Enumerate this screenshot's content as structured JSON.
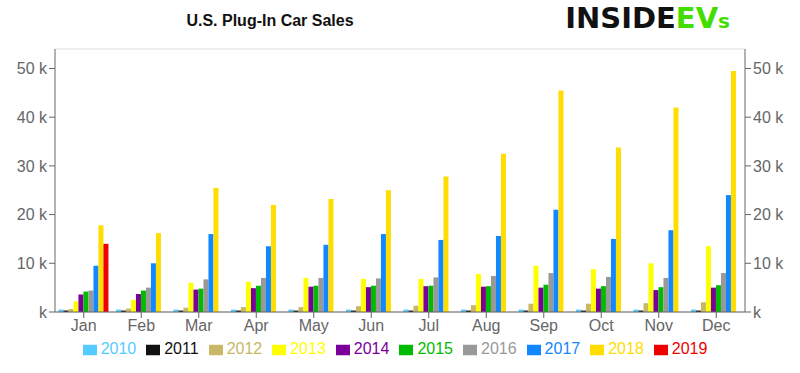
{
  "chart_data": {
    "type": "bar",
    "title": "U.S. Plug-In Car Sales",
    "categories": [
      "Jan",
      "Feb",
      "Mar",
      "Apr",
      "May",
      "Jun",
      "Jul",
      "Aug",
      "Sep",
      "Oct",
      "Nov",
      "Dec"
    ],
    "series": [
      {
        "name": "2010",
        "color": "#55CCFF",
        "values": [
          500,
          500,
          500,
          500,
          500,
          500,
          500,
          500,
          500,
          500,
          500,
          500
        ]
      },
      {
        "name": "2011",
        "color": "#111111",
        "values": [
          300,
          300,
          300,
          300,
          300,
          300,
          300,
          300,
          300,
          300,
          300,
          300
        ]
      },
      {
        "name": "2012",
        "color": "#C8B865",
        "values": [
          600,
          700,
          900,
          1000,
          1000,
          1200,
          1300,
          1400,
          1700,
          1700,
          1800,
          2000
        ]
      },
      {
        "name": "2013",
        "color": "#FFFF00",
        "values": [
          2200,
          2500,
          6000,
          6200,
          7000,
          6800,
          6800,
          7800,
          9500,
          8800,
          10000,
          13500
        ]
      },
      {
        "name": "2014",
        "color": "#7B0099",
        "values": [
          3600,
          3700,
          4600,
          4900,
          5200,
          5100,
          5300,
          5200,
          5000,
          4800,
          4500,
          5000
        ]
      },
      {
        "name": "2015",
        "color": "#00BB00",
        "values": [
          4200,
          4400,
          4800,
          5400,
          5400,
          5400,
          5400,
          5300,
          5600,
          5300,
          5100,
          5500
        ]
      },
      {
        "name": "2016",
        "color": "#999999",
        "values": [
          4400,
          5000,
          6700,
          7000,
          7000,
          6900,
          7100,
          7400,
          8000,
          7200,
          7000,
          8000
        ]
      },
      {
        "name": "2017",
        "color": "#1188FF",
        "values": [
          9500,
          10000,
          16000,
          13500,
          13800,
          16000,
          14800,
          15600,
          21000,
          15000,
          16800,
          24000
        ]
      },
      {
        "name": "2018",
        "color": "#FFDD00",
        "values": [
          17800,
          16200,
          25500,
          22000,
          23200,
          25000,
          27800,
          32500,
          45500,
          33800,
          42000,
          49500
        ]
      },
      {
        "name": "2019",
        "color": "#EE0000",
        "values": [
          14000,
          0,
          0,
          0,
          0,
          0,
          0,
          0,
          0,
          0,
          0,
          0
        ]
      }
    ],
    "ylim": [
      0,
      54000
    ],
    "yticks": [
      {
        "value": 0,
        "label": "k"
      },
      {
        "value": 10000,
        "label": "10 k"
      },
      {
        "value": 20000,
        "label": "20 k"
      },
      {
        "value": 30000,
        "label": "30 k"
      },
      {
        "value": 40000,
        "label": "40 k"
      },
      {
        "value": 50000,
        "label": "50 k"
      }
    ],
    "y2lim": [
      0,
      54000
    ],
    "y2ticks": [
      {
        "value": 0,
        "label": "k"
      },
      {
        "value": 10000,
        "label": "10 k"
      },
      {
        "value": 20000,
        "label": "20 k"
      },
      {
        "value": 30000,
        "label": "30 k"
      },
      {
        "value": 40000,
        "label": "40 k"
      },
      {
        "value": 50000,
        "label": "50 k"
      }
    ],
    "grid": true,
    "legend": "bottom",
    "annotations": [
      {
        "text": "INSIDE",
        "color": "#111111"
      },
      {
        "text": "EV",
        "color": "#44DD00"
      },
      {
        "text": "s",
        "color": "#44DD00"
      }
    ]
  }
}
